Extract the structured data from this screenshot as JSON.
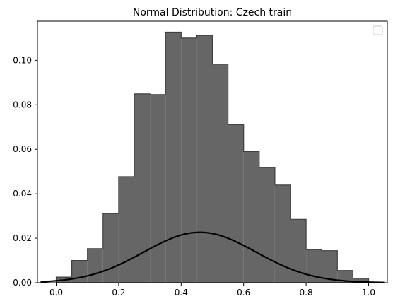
{
  "chart_data": {
    "type": "bar",
    "title": "Normal Distribution: Czech train",
    "xlabel": "",
    "ylabel": "",
    "xlim": [
      -0.06,
      1.06
    ],
    "ylim": [
      0,
      0.1176
    ],
    "x_ticks": [
      "0.0",
      "0.2",
      "0.4",
      "0.6",
      "0.8",
      "1.0"
    ],
    "y_ticks": [
      "0.00",
      "0.02",
      "0.04",
      "0.06",
      "0.08",
      "0.10"
    ],
    "grid": false,
    "legend": {
      "placement": "top-right",
      "entries": []
    },
    "histogram": {
      "bin_edges": [
        0.0,
        0.05,
        0.1,
        0.15,
        0.2,
        0.25,
        0.3,
        0.35,
        0.4,
        0.45,
        0.5,
        0.55,
        0.6,
        0.65,
        0.7,
        0.75,
        0.8,
        0.85,
        0.9,
        0.95,
        1.0
      ],
      "values": [
        0.0025,
        0.01,
        0.0153,
        0.0311,
        0.0477,
        0.0849,
        0.0846,
        0.1127,
        0.11,
        0.1112,
        0.0983,
        0.0711,
        0.059,
        0.0518,
        0.0439,
        0.0285,
        0.0149,
        0.0144,
        0.0055,
        0.002
      ],
      "color": "#666666",
      "edge_color": "#3f3f3f"
    },
    "curve": {
      "kind": "normal-pdf",
      "x_range": [
        -0.05,
        1.05
      ],
      "mean": 0.46,
      "std": 0.18,
      "scale": 0.01022,
      "color": "#000000"
    }
  }
}
